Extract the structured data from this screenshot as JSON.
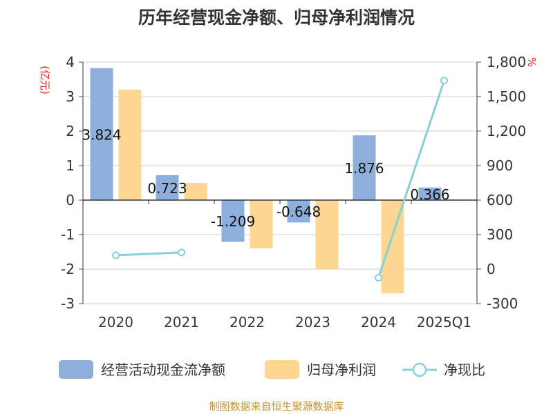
{
  "chart_data": {
    "type": "bar+line",
    "title": "历年经营现金净额、归母净利润情况",
    "categories": [
      "2020",
      "2021",
      "2022",
      "2023",
      "2024",
      "2025Q1"
    ],
    "left_axis": {
      "unit": "(亿元)",
      "min": -3,
      "max": 4,
      "step": 1,
      "ticks": [
        "4",
        "3",
        "2",
        "1",
        "0",
        "-1",
        "-2",
        "-3"
      ]
    },
    "right_axis": {
      "unit": "%",
      "min": -300,
      "max": 1800,
      "step": 300,
      "ticks": [
        "1,800",
        "1,500",
        "1,200",
        "900",
        "600",
        "300",
        "0",
        "-300"
      ]
    },
    "series": [
      {
        "name": "经营活动现金流净额",
        "type": "bar",
        "axis": "left",
        "color": "#8eaedb",
        "values": [
          3.824,
          0.723,
          -1.209,
          -0.648,
          1.876,
          0.366
        ],
        "labels": [
          "3.824",
          "0.723",
          "-1.209",
          "-0.648",
          "1.876",
          "0.366"
        ]
      },
      {
        "name": "归母净利润",
        "type": "bar",
        "axis": "left",
        "color": "#fdd692",
        "values": [
          3.2,
          0.5,
          -1.4,
          -2.0,
          -2.7,
          0.02
        ]
      },
      {
        "name": "净现比",
        "type": "line",
        "axis": "right",
        "color": "#86d0d8",
        "values": [
          120,
          145,
          null,
          null,
          -75,
          1640
        ]
      }
    ],
    "legend_position": "bottom",
    "source": "制图数据来自恒生聚源数据库"
  }
}
